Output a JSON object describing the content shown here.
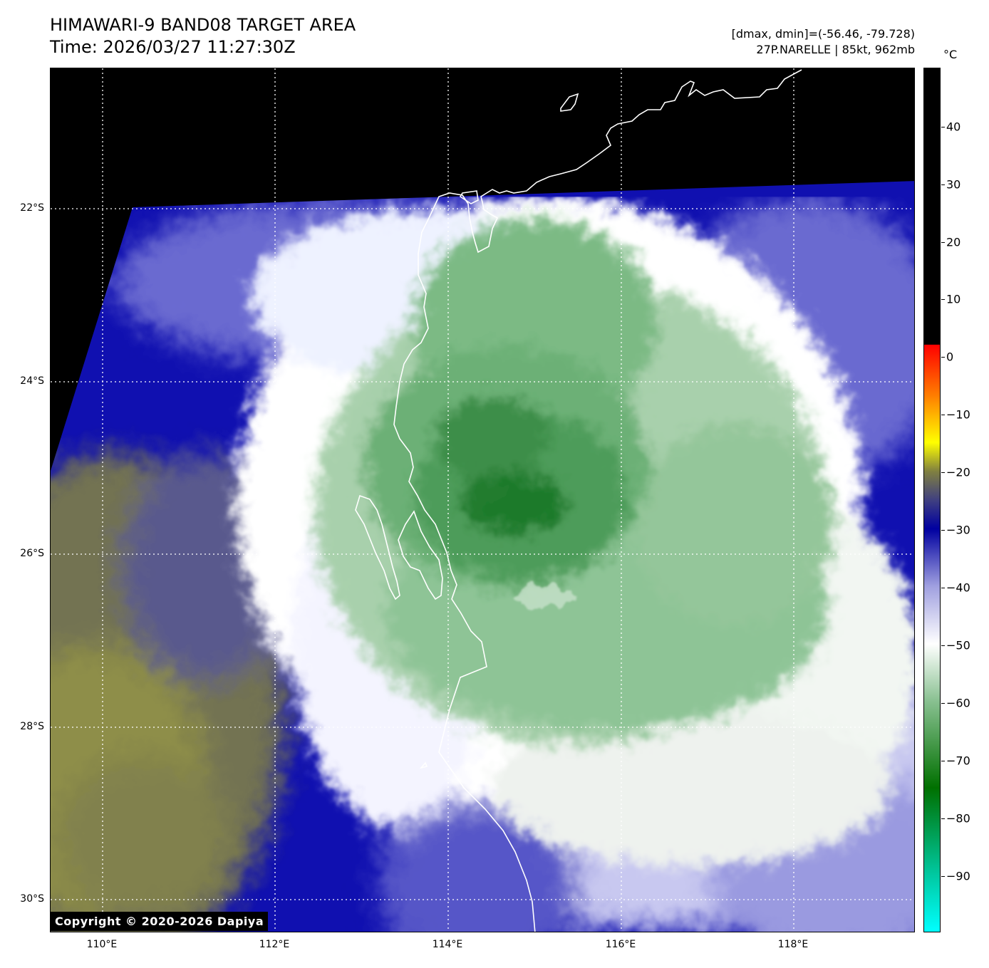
{
  "header": {
    "title_line1": "HIMAWARI-9 BAND08 TARGET AREA",
    "title_line2": "Time: 2026/03/27 11:27:30Z",
    "stats_line": "[dmax, dmin]=(-56.46, -79.728)",
    "storm_line": "27P.NARELLE | 85kt, 962mb"
  },
  "map": {
    "latitude_labels": [
      "22°S",
      "24°S",
      "26°S",
      "28°S",
      "30°S"
    ],
    "longitude_labels": [
      "110°E",
      "112°E",
      "114°E",
      "116°E",
      "118°E"
    ],
    "extent": {
      "lon_min": 109.4,
      "lon_max": 119.4,
      "lat_max": -20.4,
      "lat_min": -30.4
    },
    "colors": {
      "no_data": "#000000",
      "deep_ocean_blue": "#1010b0",
      "cloud_white": "#ffffff",
      "convection_green": "#1a7a2a",
      "warm_olive": "#8c8c3c",
      "coastline": "#ffffff",
      "gridline": "#ffffff"
    }
  },
  "colorbar": {
    "unit": "°C",
    "tick_labels": [
      "40",
      "30",
      "20",
      "10",
      "0",
      "−10",
      "−20",
      "−30",
      "−40",
      "−50",
      "−60",
      "−70",
      "−80",
      "−90"
    ],
    "range": [
      -100,
      50
    ],
    "stops": [
      {
        "value": -100,
        "color": "#00ffff"
      },
      {
        "value": -90,
        "color": "#00c8a0"
      },
      {
        "value": -75,
        "color": "#007000"
      },
      {
        "value": -60,
        "color": "#88c090"
      },
      {
        "value": -50,
        "color": "#ffffff"
      },
      {
        "value": -40,
        "color": "#a0a0e0"
      },
      {
        "value": -30,
        "color": "#0000a0"
      },
      {
        "value": -25,
        "color": "#404080"
      },
      {
        "value": -20,
        "color": "#808040"
      },
      {
        "value": -15,
        "color": "#ffff00"
      },
      {
        "value": -7,
        "color": "#ff8000"
      },
      {
        "value": 2,
        "color": "#ff0000"
      },
      {
        "value": 2.01,
        "color": "#000000"
      },
      {
        "value": 50,
        "color": "#000000"
      }
    ]
  },
  "copyright": "Copyright © 2020-2026 Dapiya"
}
